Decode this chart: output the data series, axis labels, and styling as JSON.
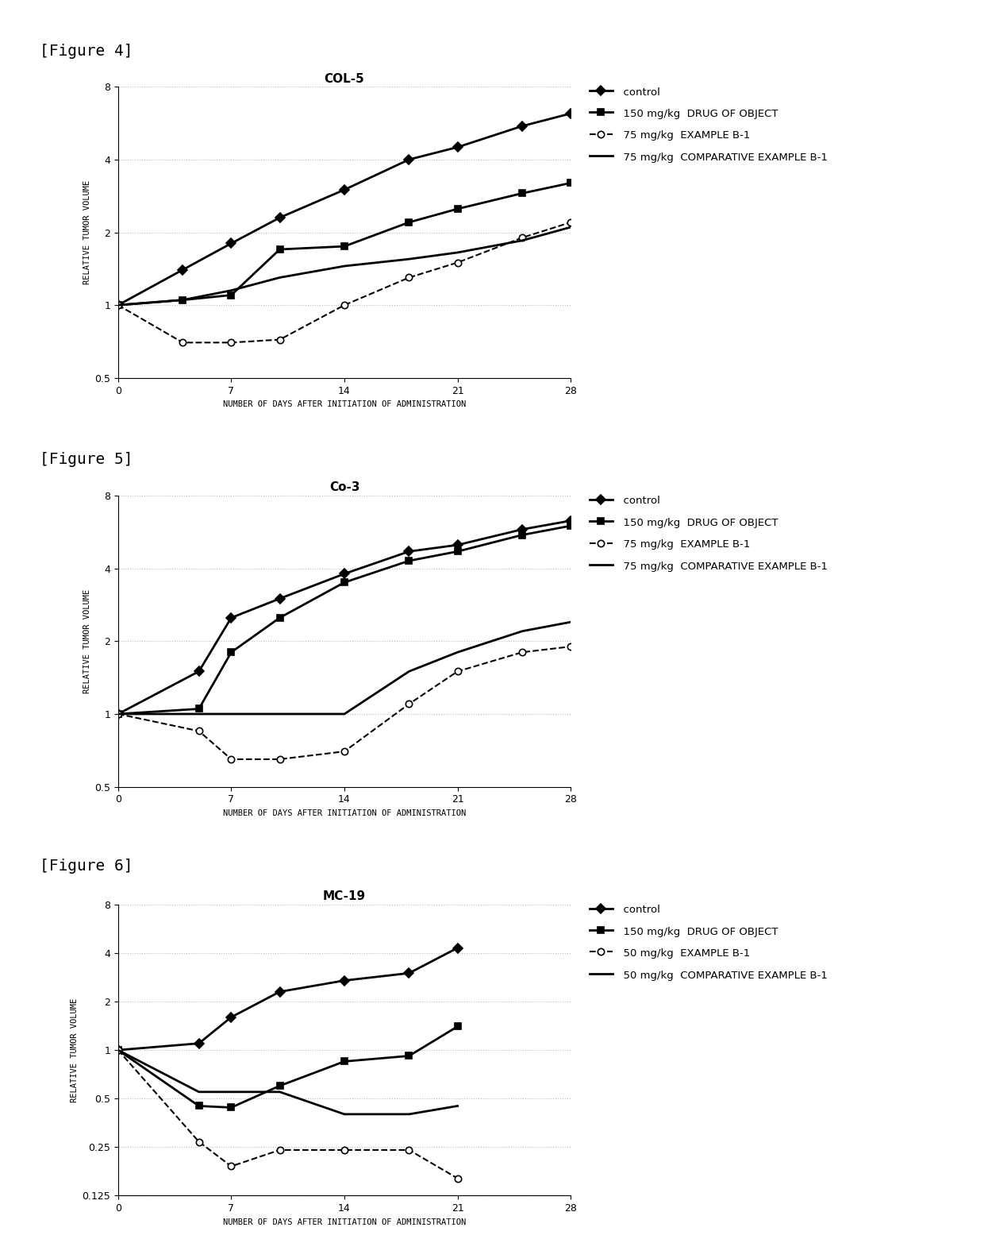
{
  "fig4": {
    "title": "COL-5",
    "fig_label": "[Figure 4]",
    "xlim": [
      0,
      28
    ],
    "xticks": [
      0,
      7,
      14,
      21,
      28
    ],
    "ylim_log": [
      0.5,
      8
    ],
    "yticks": [
      0.5,
      1,
      2,
      4,
      8
    ],
    "series": {
      "control": {
        "x": [
          0,
          4,
          7,
          10,
          14,
          18,
          21,
          25,
          28
        ],
        "y": [
          1,
          1.4,
          1.8,
          2.3,
          3.0,
          4.0,
          4.5,
          5.5,
          6.2
        ],
        "marker": "D",
        "ls": "-",
        "lw": 2.0,
        "ms": 6
      },
      "drug150": {
        "x": [
          0,
          4,
          7,
          10,
          14,
          18,
          21,
          25,
          28
        ],
        "y": [
          1,
          1.05,
          1.1,
          1.7,
          1.75,
          2.2,
          2.5,
          2.9,
          3.2
        ],
        "marker": "s",
        "ls": "-",
        "lw": 2.0,
        "ms": 6
      },
      "example75": {
        "x": [
          0,
          4,
          7,
          10,
          14,
          18,
          21,
          25,
          28
        ],
        "y": [
          1,
          0.7,
          0.7,
          0.72,
          1.0,
          1.3,
          1.5,
          1.9,
          2.2
        ],
        "marker": "o",
        "ls": "--",
        "lw": 1.5,
        "ms": 6
      },
      "comp75": {
        "x": [
          0,
          4,
          7,
          10,
          14,
          18,
          21,
          25,
          28
        ],
        "y": [
          1,
          1.05,
          1.15,
          1.3,
          1.45,
          1.55,
          1.65,
          1.85,
          2.1
        ],
        "marker": "None",
        "ls": "-",
        "lw": 2.0,
        "ms": 0
      }
    },
    "legend_labels": [
      "  control",
      "  150 mg/kg  DRUG OF OBJECT",
      "  75 mg/kg  EXAMPLE B-1",
      "  75 mg/kg  COMPARATIVE EXAMPLE B-1"
    ]
  },
  "fig5": {
    "title": "Co-3",
    "fig_label": "[Figure 5]",
    "xlim": [
      0,
      28
    ],
    "xticks": [
      0,
      7,
      14,
      21,
      28
    ],
    "ylim_log": [
      0.5,
      8
    ],
    "yticks": [
      0.5,
      1,
      2,
      4,
      8
    ],
    "series": {
      "control": {
        "x": [
          0,
          5,
          7,
          10,
          14,
          18,
          21,
          25,
          28
        ],
        "y": [
          1,
          1.5,
          2.5,
          3.0,
          3.8,
          4.7,
          5.0,
          5.8,
          6.3
        ],
        "marker": "D",
        "ls": "-",
        "lw": 2.0,
        "ms": 6
      },
      "drug150": {
        "x": [
          0,
          5,
          7,
          10,
          14,
          18,
          21,
          25,
          28
        ],
        "y": [
          1,
          1.05,
          1.8,
          2.5,
          3.5,
          4.3,
          4.7,
          5.5,
          6.0
        ],
        "marker": "s",
        "ls": "-",
        "lw": 2.0,
        "ms": 6
      },
      "example75": {
        "x": [
          0,
          5,
          7,
          10,
          14,
          18,
          21,
          25,
          28
        ],
        "y": [
          1,
          0.85,
          0.65,
          0.65,
          0.7,
          1.1,
          1.5,
          1.8,
          1.9
        ],
        "marker": "o",
        "ls": "--",
        "lw": 1.5,
        "ms": 6
      },
      "comp75": {
        "x": [
          0,
          5,
          7,
          10,
          14,
          18,
          21,
          25,
          28
        ],
        "y": [
          1,
          1.0,
          1.0,
          1.0,
          1.0,
          1.5,
          1.8,
          2.2,
          2.4
        ],
        "marker": "None",
        "ls": "-",
        "lw": 2.0,
        "ms": 0
      }
    },
    "legend_labels": [
      "  control",
      "  150 mg/kg  DRUG OF OBJECT",
      "  75 mg/kg  EXAMPLE B-1",
      "  75 mg/kg  COMPARATIVE EXAMPLE B-1"
    ]
  },
  "fig6": {
    "title": "MC-19",
    "fig_label": "[Figure 6]",
    "xlim": [
      0,
      28
    ],
    "xticks": [
      0,
      7,
      14,
      21,
      28
    ],
    "ylim_log": [
      0.125,
      8
    ],
    "yticks": [
      0.125,
      0.25,
      0.5,
      1,
      2,
      4,
      8
    ],
    "series": {
      "control": {
        "x": [
          0,
          5,
          7,
          10,
          14,
          18,
          21
        ],
        "y": [
          1,
          1.1,
          1.6,
          2.3,
          2.7,
          3.0,
          4.3
        ],
        "marker": "D",
        "ls": "-",
        "lw": 2.0,
        "ms": 6
      },
      "drug150": {
        "x": [
          0,
          5,
          7,
          10,
          14,
          18,
          21
        ],
        "y": [
          1,
          0.45,
          0.44,
          0.6,
          0.85,
          0.92,
          1.4
        ],
        "marker": "s",
        "ls": "-",
        "lw": 2.0,
        "ms": 6
      },
      "example50": {
        "x": [
          0,
          5,
          7,
          10,
          14,
          18,
          21
        ],
        "y": [
          1,
          0.27,
          0.19,
          0.24,
          0.24,
          0.24,
          0.16
        ],
        "marker": "o",
        "ls": "--",
        "lw": 1.5,
        "ms": 6
      },
      "comp50": {
        "x": [
          0,
          5,
          7,
          10,
          14,
          18,
          21
        ],
        "y": [
          1,
          0.55,
          0.55,
          0.55,
          0.4,
          0.4,
          0.45
        ],
        "marker": "None",
        "ls": "-",
        "lw": 2.0,
        "ms": 0
      }
    },
    "legend_labels": [
      "  control",
      "  150 mg/kg  DRUG OF OBJECT",
      "  50 mg/kg  EXAMPLE B-1",
      "  50 mg/kg  COMPARATIVE EXAMPLE B-1"
    ]
  },
  "ylabel": "RELATIVE TUMOR VOLUME",
  "xlabel": "NUMBER OF DAYS AFTER INITIATION OF ADMINISTRATION",
  "bg_color": "#ffffff",
  "line_color": "#000000",
  "grid_color": "#bbbbbb",
  "title_fontsize": 11,
  "label_fontsize": 7.5,
  "tick_fontsize": 9,
  "legend_fontsize": 9.5,
  "fig_label_fontsize": 14
}
